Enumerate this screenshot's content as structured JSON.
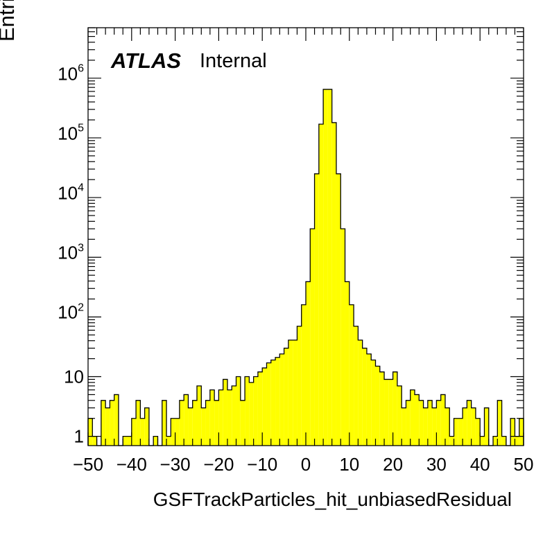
{
  "chart_data": {
    "type": "bar",
    "histogram": true,
    "xlabel": "GSFTrackParticles_hit_unbiasedResidual",
    "ylabel": "Entries",
    "annotation": {
      "experiment": "ATLAS",
      "status": "Internal"
    },
    "xlim": [
      -50,
      50
    ],
    "ylim": [
      0.7,
      7000000
    ],
    "log_y": true,
    "fill_color": "#ffff00",
    "line_color": "#000000",
    "bin_width": 1,
    "bin_edges_start": -50,
    "values": [
      2,
      1,
      0,
      4,
      3,
      4,
      5,
      0,
      1,
      1,
      2,
      4,
      2,
      3,
      0,
      1,
      0,
      4,
      1,
      2,
      2,
      4,
      5,
      3,
      4,
      7,
      3,
      4,
      6,
      4,
      6,
      9,
      6,
      7,
      10,
      4,
      10,
      8,
      10,
      12,
      14,
      17,
      19,
      21,
      24,
      30,
      41,
      41,
      70,
      160,
      390,
      3000,
      25000,
      170000,
      650000,
      650000,
      180000,
      25000,
      3000,
      390,
      160,
      70,
      41,
      30,
      24,
      19,
      15,
      12,
      9,
      9,
      12,
      7,
      3,
      4,
      6,
      5,
      4,
      3,
      4,
      3,
      4,
      5,
      3,
      1,
      2,
      2,
      3,
      4,
      3,
      2,
      1,
      3,
      0,
      1,
      4,
      1,
      0,
      2,
      1,
      2
    ],
    "x_ticks": [
      "−50",
      "−40",
      "−30",
      "−20",
      "−10",
      "0",
      "10",
      "20",
      "30",
      "40",
      "50"
    ],
    "x_tick_values": [
      -50,
      -40,
      -30,
      -20,
      -10,
      0,
      10,
      20,
      30,
      40,
      50
    ],
    "y_ticks": [
      {
        "value": 1,
        "label": "1",
        "exp": ""
      },
      {
        "value": 10,
        "label": "10",
        "exp": ""
      },
      {
        "value": 100,
        "label": "10",
        "exp": "2"
      },
      {
        "value": 1000,
        "label": "10",
        "exp": "3"
      },
      {
        "value": 10000,
        "label": "10",
        "exp": "4"
      },
      {
        "value": 100000,
        "label": "10",
        "exp": "5"
      },
      {
        "value": 1000000,
        "label": "10",
        "exp": "6"
      }
    ],
    "grid": false
  }
}
